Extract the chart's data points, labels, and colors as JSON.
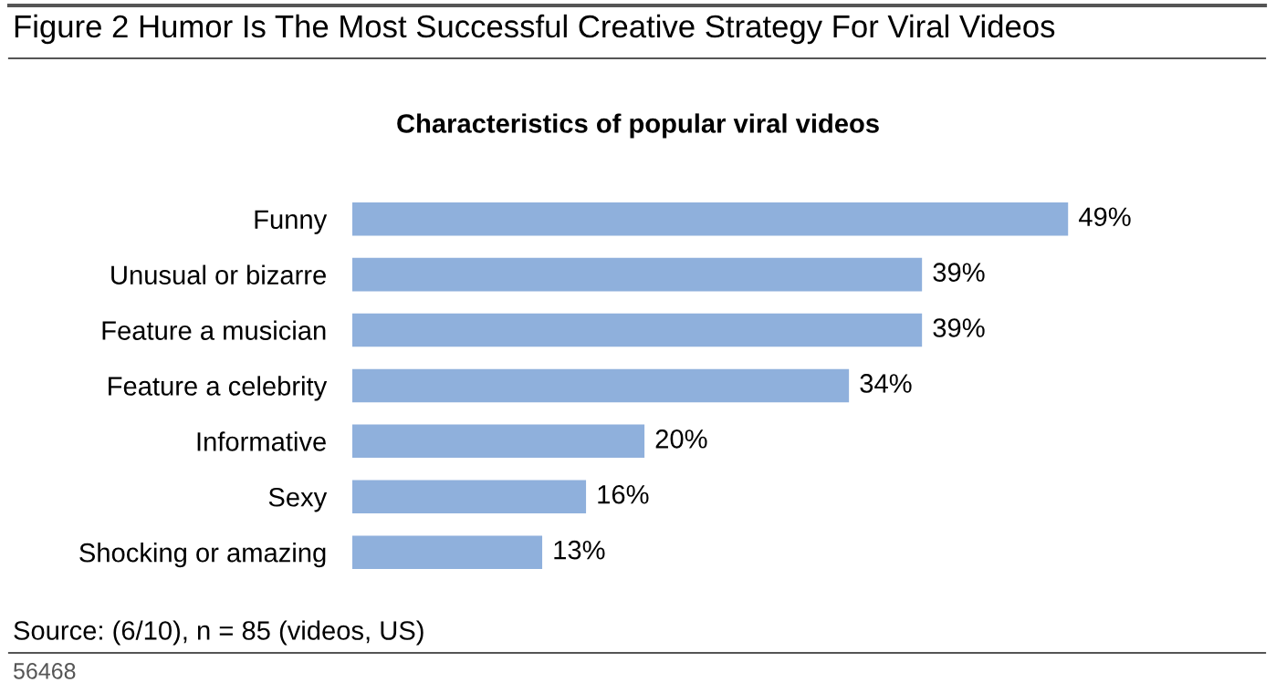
{
  "chart_data": {
    "type": "bar",
    "orientation": "horizontal",
    "title": "Figure 2 Humor Is The Most Successful Creative Strategy For Viral Videos",
    "subtitle": "Characteristics of popular viral videos",
    "categories": [
      "Funny",
      "Unusual or bizarre",
      "Feature a musician",
      "Feature a celebrity",
      "Informative",
      "Sexy",
      "Shocking or amazing"
    ],
    "values": [
      49,
      39,
      39,
      34,
      20,
      16,
      13
    ],
    "value_labels": [
      "49%",
      "39%",
      "39%",
      "34%",
      "20%",
      "16%",
      "13%"
    ],
    "color": "#8fb0dc",
    "grid": false,
    "legend": false,
    "annotations": [
      "Source: (6/10), n = 85 (videos, US)",
      "56468"
    ]
  }
}
